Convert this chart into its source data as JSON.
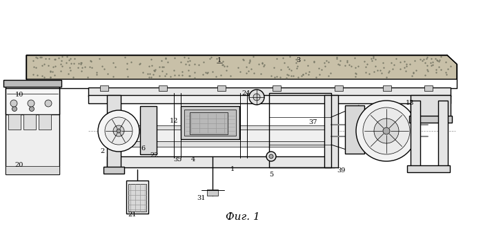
{
  "title": "Фиг. 1",
  "bg_color": "#ffffff",
  "line_color": "#000000",
  "gray_light": "#cccccc",
  "gray_medium": "#aaaaaa",
  "gray_dark": "#666666",
  "concrete_color": "#c8c0a8",
  "concrete_dot_color": "#777766"
}
